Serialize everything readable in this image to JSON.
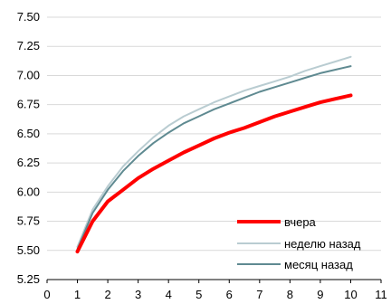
{
  "chart_data": {
    "type": "line",
    "title": "",
    "xlabel": "",
    "ylabel": "",
    "xlim": [
      0,
      11
    ],
    "ylim": [
      5.25,
      7.5
    ],
    "xticks": [
      "0",
      "1",
      "2",
      "3",
      "4",
      "5",
      "6",
      "7",
      "8",
      "9",
      "10",
      "11"
    ],
    "yticks": [
      "5.25",
      "5.50",
      "5.75",
      "6.00",
      "6.25",
      "6.50",
      "6.75",
      "7.00",
      "7.25",
      "7.50"
    ],
    "grid": "horizontal",
    "legend_position": "bottom-right",
    "x": [
      1,
      1.5,
      2,
      2.5,
      3,
      3.5,
      4,
      4.5,
      5,
      5.5,
      6,
      6.5,
      7,
      7.5,
      8,
      8.5,
      9,
      9.5,
      10
    ],
    "series": [
      {
        "name": "вчера",
        "color": "#ff0000",
        "values": [
          5.49,
          5.75,
          5.92,
          6.02,
          6.12,
          6.2,
          6.27,
          6.34,
          6.4,
          6.46,
          6.51,
          6.55,
          6.6,
          6.65,
          6.69,
          6.73,
          6.77,
          6.8,
          6.83
        ]
      },
      {
        "name": "неделю назад",
        "color": "#b9ccd1",
        "values": [
          5.53,
          5.85,
          6.05,
          6.22,
          6.35,
          6.47,
          6.57,
          6.65,
          6.71,
          6.77,
          6.82,
          6.87,
          6.91,
          6.95,
          6.99,
          7.04,
          7.08,
          7.12,
          7.16
        ]
      },
      {
        "name": "месяц назад",
        "color": "#5f8a91",
        "values": [
          5.51,
          5.82,
          6.02,
          6.18,
          6.31,
          6.42,
          6.51,
          6.59,
          6.65,
          6.71,
          6.76,
          6.81,
          6.86,
          6.9,
          6.94,
          6.98,
          7.02,
          7.05,
          7.08
        ]
      }
    ]
  }
}
